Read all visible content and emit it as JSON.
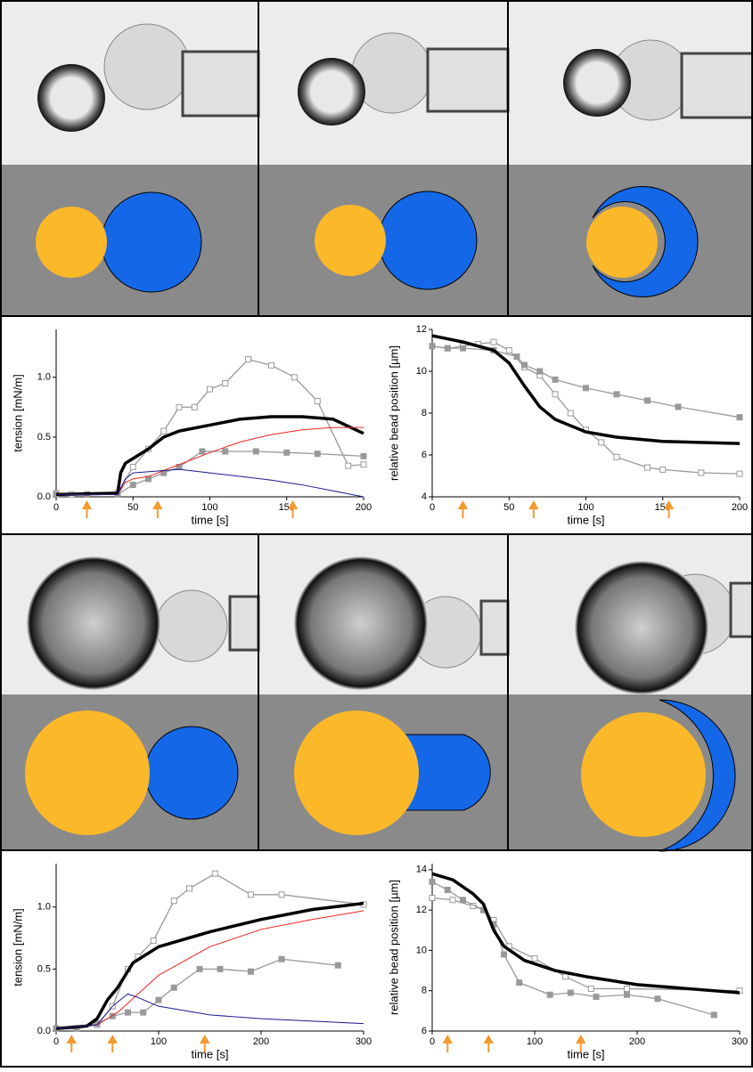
{
  "chart_data": [
    {
      "type": "line",
      "ylabel": "tension  [mN/m]",
      "xlabel": "time  [s]",
      "xlim": [
        0,
        200
      ],
      "ylim": [
        0,
        1.4
      ],
      "xticks": [
        0,
        50,
        100,
        150,
        200
      ],
      "yticks": [
        {
          "value": 0,
          "label": "0.0"
        },
        0.5,
        {
          "value": 1,
          "label": "1.0"
        }
      ],
      "arrows": [
        20,
        66,
        154
      ],
      "arrow_color": "#f39a2e",
      "series": [
        {
          "color": "#999999",
          "marker": "open",
          "width": 1.3,
          "x": [
            0,
            10,
            20,
            40,
            50,
            60,
            70,
            80,
            90,
            100,
            110,
            125,
            140,
            155,
            170,
            190,
            200
          ],
          "values": [
            0.03,
            0.02,
            0.02,
            0.03,
            0.25,
            0.4,
            0.55,
            0.75,
            0.75,
            0.9,
            0.95,
            1.15,
            1.1,
            1.0,
            0.8,
            0.26,
            0.27
          ]
        },
        {
          "color": "#999999",
          "marker": "filled",
          "width": 1.3,
          "x": [
            0,
            20,
            40,
            50,
            60,
            70,
            80,
            95,
            110,
            130,
            150,
            170,
            200
          ],
          "values": [
            0.02,
            0.02,
            0.02,
            0.1,
            0.15,
            0.2,
            0.25,
            0.38,
            0.38,
            0.38,
            0.37,
            0.36,
            0.34
          ]
        },
        {
          "color": "#000000",
          "marker": "none",
          "width": 3.5,
          "x": [
            0,
            40,
            42,
            45,
            50,
            60,
            70,
            80,
            100,
            120,
            140,
            160,
            180,
            200
          ],
          "values": [
            0.02,
            0.03,
            0.2,
            0.28,
            0.32,
            0.4,
            0.5,
            0.55,
            0.6,
            0.65,
            0.67,
            0.67,
            0.65,
            0.53
          ]
        },
        {
          "color": "#ee2222",
          "marker": "none",
          "width": 1,
          "x": [
            0,
            40,
            45,
            50,
            60,
            80,
            100,
            120,
            140,
            160,
            180,
            200
          ],
          "values": [
            0.02,
            0.02,
            0.12,
            0.15,
            0.17,
            0.27,
            0.37,
            0.46,
            0.52,
            0.56,
            0.58,
            0.58
          ]
        },
        {
          "color": "#1a1a8c",
          "marker": "none",
          "width": 1,
          "x": [
            0,
            40,
            45,
            50,
            70,
            80,
            100,
            120,
            140,
            160,
            180,
            200
          ],
          "values": [
            0.02,
            0.02,
            0.15,
            0.2,
            0.22,
            0.23,
            0.2,
            0.17,
            0.14,
            0.1,
            0.05,
            0.0
          ]
        }
      ]
    },
    {
      "type": "line",
      "ylabel": "relative bead position  [µm]",
      "xlabel": "time  [s]",
      "xlim": [
        0,
        200
      ],
      "ylim": [
        4,
        12
      ],
      "xticks": [
        0,
        50,
        100,
        150,
        200
      ],
      "yticks": [
        4,
        6,
        8,
        10,
        12
      ],
      "arrows": [
        20,
        66,
        154
      ],
      "arrow_color": "#f39a2e",
      "series": [
        {
          "color": "#999999",
          "marker": "open",
          "width": 1.3,
          "x": [
            0,
            10,
            20,
            30,
            40,
            50,
            60,
            70,
            80,
            90,
            100,
            110,
            120,
            140,
            150,
            175,
            200
          ],
          "values": [
            11.2,
            11.1,
            11.2,
            11.3,
            11.4,
            11,
            10.2,
            9.8,
            8.9,
            8,
            7.2,
            6.6,
            5.9,
            5.4,
            5.3,
            5.15,
            5.1
          ]
        },
        {
          "color": "#999999",
          "marker": "filled",
          "width": 1.3,
          "x": [
            0,
            10,
            20,
            40,
            55,
            60,
            70,
            80,
            100,
            120,
            140,
            160,
            200
          ],
          "values": [
            11.2,
            11.1,
            11.1,
            11,
            10.7,
            10.3,
            10,
            9.6,
            9.2,
            8.9,
            8.6,
            8.3,
            7.8
          ]
        },
        {
          "color": "#000000",
          "marker": "none",
          "width": 3.5,
          "x": [
            0,
            20,
            40,
            50,
            60,
            70,
            80,
            100,
            120,
            150,
            200
          ],
          "values": [
            11.7,
            11.4,
            11,
            10.4,
            9.3,
            8.3,
            7.7,
            7.1,
            6.85,
            6.65,
            6.55
          ]
        }
      ]
    },
    {
      "type": "line",
      "ylabel": "tension  [mN/m]",
      "xlabel": "time  [s]",
      "xlim": [
        0,
        300
      ],
      "ylim": [
        0,
        1.35
      ],
      "xticks": [
        0,
        100,
        200,
        300
      ],
      "yticks": [
        {
          "value": 0,
          "label": "0.0"
        },
        0.5,
        {
          "value": 1,
          "label": "1.0"
        }
      ],
      "arrows": [
        15,
        55,
        145
      ],
      "arrow_color": "#f39a2e",
      "series": [
        {
          "color": "#999999",
          "marker": "open",
          "width": 1.3,
          "x": [
            0,
            20,
            40,
            55,
            70,
            80,
            95,
            115,
            130,
            155,
            190,
            220,
            300
          ],
          "values": [
            0.02,
            0.02,
            0.05,
            0.2,
            0.5,
            0.6,
            0.73,
            1.05,
            1.15,
            1.27,
            1.1,
            1.1,
            1.02
          ]
        },
        {
          "color": "#999999",
          "marker": "filled",
          "width": 1.3,
          "x": [
            0,
            20,
            40,
            55,
            70,
            85,
            100,
            115,
            140,
            160,
            190,
            220,
            275
          ],
          "values": [
            0.02,
            0.02,
            0.06,
            0.12,
            0.15,
            0.15,
            0.25,
            0.35,
            0.5,
            0.5,
            0.48,
            0.58,
            0.53
          ]
        },
        {
          "color": "#000000",
          "marker": "none",
          "width": 3.5,
          "x": [
            0,
            30,
            40,
            50,
            60,
            75,
            100,
            150,
            200,
            250,
            300
          ],
          "values": [
            0.02,
            0.04,
            0.1,
            0.25,
            0.35,
            0.55,
            0.68,
            0.8,
            0.9,
            0.98,
            1.03
          ]
        },
        {
          "color": "#ee2222",
          "marker": "none",
          "width": 1,
          "x": [
            0,
            40,
            60,
            80,
            100,
            150,
            200,
            250,
            300
          ],
          "values": [
            0.02,
            0.05,
            0.15,
            0.3,
            0.45,
            0.68,
            0.82,
            0.9,
            0.97
          ]
        },
        {
          "color": "#1a1a8c",
          "marker": "none",
          "width": 1,
          "x": [
            0,
            40,
            55,
            70,
            80,
            100,
            150,
            200,
            250,
            300
          ],
          "values": [
            0.02,
            0.05,
            0.2,
            0.3,
            0.27,
            0.2,
            0.13,
            0.1,
            0.08,
            0.06
          ]
        }
      ]
    },
    {
      "type": "line",
      "ylabel": "relative bead position  [µm]",
      "xlabel": "time  [s]",
      "xlim": [
        0,
        300
      ],
      "ylim": [
        6,
        14.3
      ],
      "xticks": [
        0,
        100,
        200,
        300
      ],
      "yticks": [
        6,
        8,
        10,
        12,
        14
      ],
      "arrows": [
        15,
        55,
        145
      ],
      "arrow_color": "#f39a2e",
      "series": [
        {
          "color": "#999999",
          "marker": "open",
          "width": 1.3,
          "x": [
            0,
            20,
            40,
            50,
            60,
            75,
            100,
            130,
            155,
            190,
            300
          ],
          "values": [
            12.6,
            12.5,
            12.2,
            12,
            11.5,
            10.2,
            9.6,
            8.7,
            8.1,
            8.1,
            8
          ]
        },
        {
          "color": "#999999",
          "marker": "filled",
          "width": 1.3,
          "x": [
            0,
            15,
            30,
            50,
            60,
            70,
            85,
            115,
            135,
            160,
            190,
            220,
            275
          ],
          "values": [
            13.4,
            13,
            12.5,
            12,
            11.3,
            9.8,
            8.4,
            7.8,
            7.9,
            7.7,
            7.8,
            7.6,
            6.8
          ]
        },
        {
          "color": "#000000",
          "marker": "none",
          "width": 3.5,
          "x": [
            0,
            20,
            40,
            50,
            60,
            70,
            90,
            120,
            150,
            200,
            250,
            300
          ],
          "values": [
            13.8,
            13.5,
            12.8,
            12.3,
            11,
            10.2,
            9.5,
            9,
            8.7,
            8.3,
            8.1,
            7.9
          ]
        }
      ]
    }
  ]
}
